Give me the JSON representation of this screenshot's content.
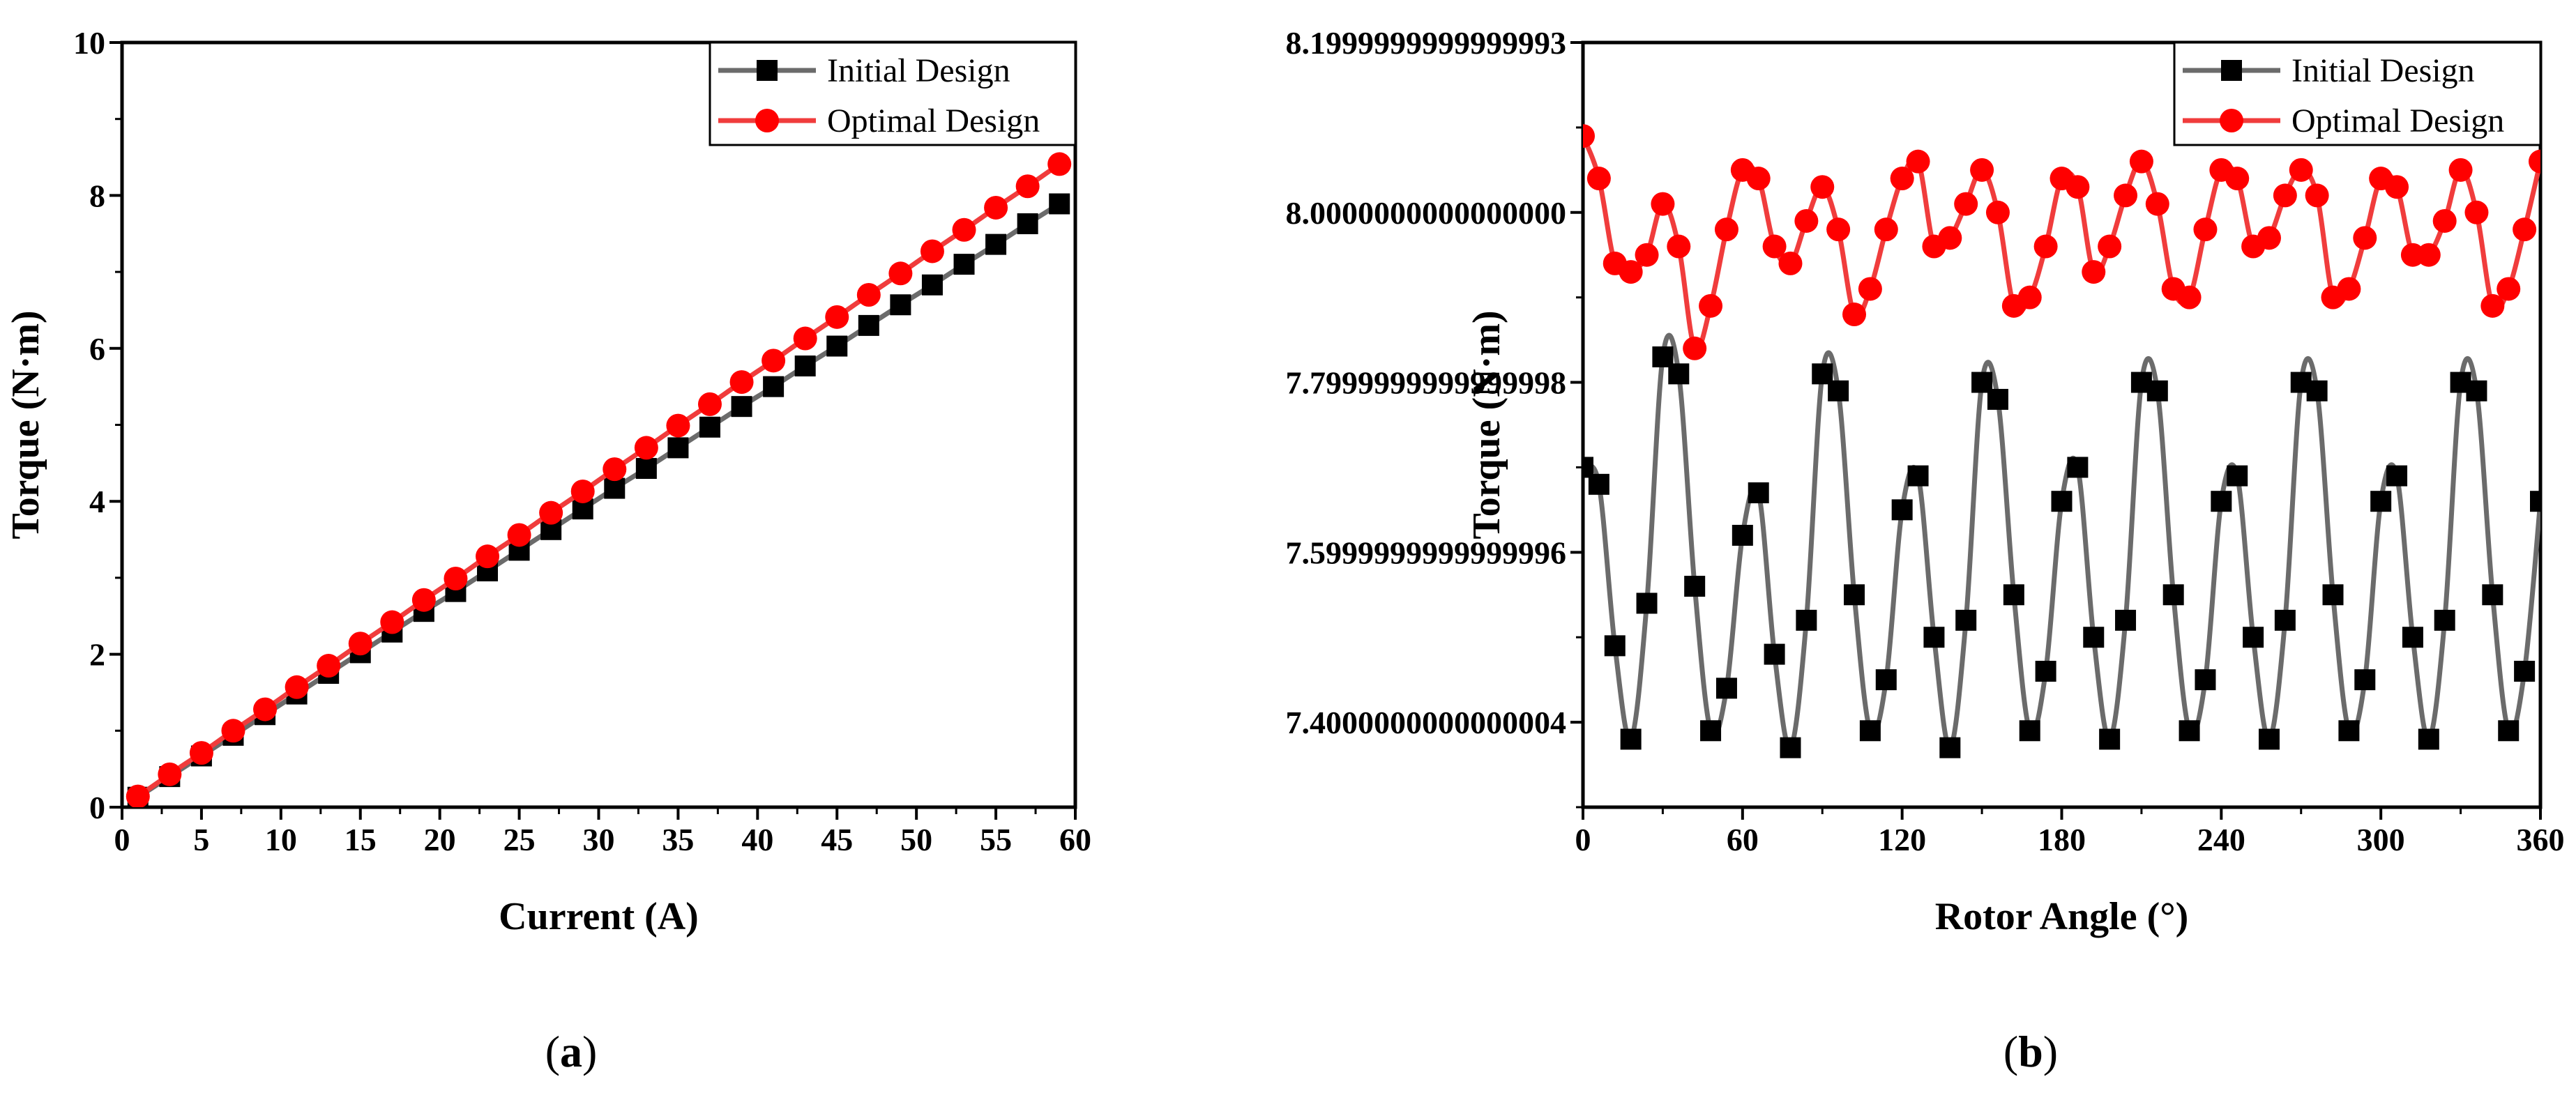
{
  "colors": {
    "initial": "#000000",
    "initial_line": "#6b6b6b",
    "optimal": "#ff0000",
    "optimal_line": "#f03c3c",
    "axis": "#000000"
  },
  "chart_data": [
    {
      "type": "line",
      "panel_label": "a",
      "xlabel": "Current (A)",
      "ylabel": "Torque (N·m)",
      "xlim": [
        0,
        60
      ],
      "ylim": [
        0,
        10
      ],
      "xticks": [
        0,
        5,
        10,
        15,
        20,
        25,
        30,
        35,
        40,
        45,
        50,
        55,
        60
      ],
      "yticks": [
        0,
        2,
        4,
        6,
        8,
        10
      ],
      "x": [
        1,
        3,
        5,
        7,
        9,
        11,
        13,
        15,
        17,
        19,
        21,
        23,
        25,
        27,
        29,
        31,
        33,
        35,
        37,
        39,
        41,
        43,
        45,
        47,
        49,
        51,
        53,
        55,
        57,
        59
      ],
      "series": [
        {
          "name": "Initial Design",
          "marker": "square",
          "values": [
            0.13,
            0.4,
            0.67,
            0.94,
            1.21,
            1.48,
            1.75,
            2.02,
            2.29,
            2.56,
            2.82,
            3.09,
            3.36,
            3.63,
            3.9,
            4.17,
            4.43,
            4.7,
            4.97,
            5.24,
            5.5,
            5.77,
            6.03,
            6.3,
            6.57,
            6.83,
            7.1,
            7.36,
            7.63,
            7.89
          ]
        },
        {
          "name": "Optimal Design",
          "marker": "circle",
          "values": [
            0.14,
            0.43,
            0.71,
            1.0,
            1.28,
            1.57,
            1.85,
            2.14,
            2.42,
            2.71,
            2.99,
            3.28,
            3.56,
            3.85,
            4.13,
            4.42,
            4.7,
            4.99,
            5.27,
            5.56,
            5.84,
            6.13,
            6.41,
            6.7,
            6.98,
            7.27,
            7.55,
            7.84,
            8.12,
            8.41
          ]
        }
      ],
      "legend": "top-right"
    },
    {
      "type": "line",
      "panel_label": "b",
      "xlabel": "Rotor Angle (°)",
      "ylabel": "Torque (N·m)",
      "xlim": [
        0,
        360
      ],
      "ylim": [
        7.3,
        8.2
      ],
      "xticks": [
        0,
        60,
        120,
        180,
        240,
        300,
        360
      ],
      "yticks": [
        7.4,
        7.6,
        7.8,
        8.0,
        8.2
      ],
      "series": [
        {
          "name": "Initial Design",
          "marker": "square",
          "x": [
            0,
            6,
            12,
            18,
            24,
            30,
            36,
            42,
            48,
            54,
            60,
            66,
            72,
            78,
            84,
            90,
            96,
            102,
            108,
            114,
            120,
            126,
            132,
            138,
            144,
            150,
            156,
            162,
            168,
            174,
            180,
            186,
            192,
            198,
            204,
            210,
            216,
            222,
            228,
            234,
            240,
            246,
            252,
            258,
            264,
            270,
            276,
            282,
            288,
            294,
            300,
            306,
            312,
            318,
            324,
            330,
            336,
            342,
            348,
            354,
            360
          ],
          "values": [
            7.7,
            7.68,
            7.49,
            7.38,
            7.54,
            7.83,
            7.81,
            7.56,
            7.39,
            7.44,
            7.62,
            7.67,
            7.48,
            7.37,
            7.52,
            7.81,
            7.79,
            7.55,
            7.39,
            7.45,
            7.65,
            7.69,
            7.5,
            7.37,
            7.52,
            7.8,
            7.78,
            7.55,
            7.39,
            7.46,
            7.66,
            7.7,
            7.5,
            7.38,
            7.52,
            7.8,
            7.79,
            7.55,
            7.39,
            7.45,
            7.66,
            7.69,
            7.5,
            7.38,
            7.52,
            7.8,
            7.79,
            7.55,
            7.39,
            7.45,
            7.66,
            7.69,
            7.5,
            7.38,
            7.52,
            7.8,
            7.79,
            7.55,
            7.39,
            7.46,
            7.66
          ]
        },
        {
          "name": "Optimal Design",
          "marker": "circle",
          "x": [
            0,
            6,
            12,
            18,
            24,
            30,
            36,
            42,
            48,
            54,
            60,
            66,
            72,
            78,
            84,
            90,
            96,
            102,
            108,
            114,
            120,
            126,
            132,
            138,
            144,
            150,
            156,
            162,
            168,
            174,
            180,
            186,
            192,
            198,
            204,
            210,
            216,
            222,
            228,
            234,
            240,
            246,
            252,
            258,
            264,
            270,
            276,
            282,
            288,
            294,
            300,
            306,
            312,
            318,
            324,
            330,
            336,
            342,
            348,
            354,
            360
          ],
          "values": [
            8.09,
            8.04,
            7.94,
            7.93,
            7.95,
            8.01,
            7.96,
            7.84,
            7.89,
            7.98,
            8.05,
            8.04,
            7.96,
            7.94,
            7.99,
            8.03,
            7.98,
            7.88,
            7.91,
            7.98,
            8.04,
            8.06,
            7.96,
            7.97,
            8.01,
            8.05,
            8.0,
            7.89,
            7.9,
            7.96,
            8.04,
            8.03,
            7.93,
            7.96,
            8.02,
            8.06,
            8.01,
            7.91,
            7.9,
            7.98,
            8.05,
            8.04,
            7.96,
            7.97,
            8.02,
            8.05,
            8.02,
            7.9,
            7.91,
            7.97,
            8.04,
            8.03,
            7.95,
            7.95,
            7.99,
            8.05,
            8.0,
            7.89,
            7.91,
            7.98,
            8.06
          ]
        }
      ],
      "legend": "top-right"
    }
  ]
}
